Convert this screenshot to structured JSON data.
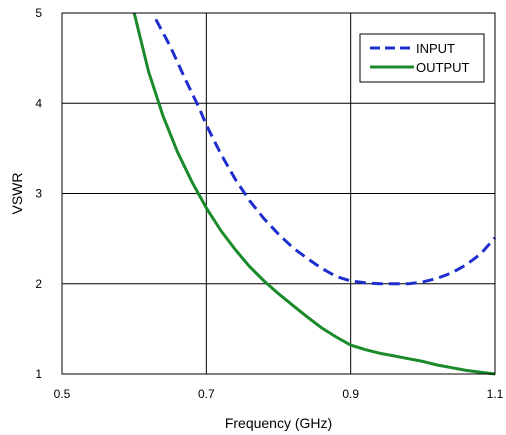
{
  "chart_data": {
    "type": "line",
    "xlabel": "Frequency (GHz)",
    "ylabel": "VSWR",
    "xlim": [
      0.5,
      1.1
    ],
    "ylim": [
      1,
      5
    ],
    "x_ticks": [
      "0.5",
      "0.7",
      "0.9",
      "1.1"
    ],
    "y_ticks": [
      "1",
      "2",
      "3",
      "4",
      "5"
    ],
    "grid": true,
    "legend_position": "top-right",
    "series": [
      {
        "name": "INPUT",
        "style": "dashed",
        "color": "#1f2fcf",
        "x": [
          0.63,
          0.65,
          0.67,
          0.69,
          0.7,
          0.72,
          0.74,
          0.76,
          0.78,
          0.8,
          0.82,
          0.84,
          0.86,
          0.88,
          0.9,
          0.92,
          0.94,
          0.96,
          0.98,
          1.0,
          1.02,
          1.04,
          1.06,
          1.08,
          1.1
        ],
        "y": [
          4.93,
          4.63,
          4.28,
          3.95,
          3.76,
          3.44,
          3.16,
          2.92,
          2.72,
          2.55,
          2.4,
          2.28,
          2.17,
          2.08,
          2.03,
          2.01,
          2.0,
          2.0,
          2.0,
          2.02,
          2.06,
          2.12,
          2.21,
          2.33,
          2.51
        ]
      },
      {
        "name": "OUTPUT",
        "style": "solid",
        "color": "#1a8a2a",
        "x": [
          0.6,
          0.62,
          0.64,
          0.66,
          0.68,
          0.7,
          0.72,
          0.74,
          0.76,
          0.78,
          0.8,
          0.82,
          0.84,
          0.86,
          0.88,
          0.9,
          0.92,
          0.94,
          0.96,
          0.98,
          1.0,
          1.02,
          1.04,
          1.06,
          1.08,
          1.1
        ],
        "y": [
          5.0,
          4.35,
          3.86,
          3.46,
          3.13,
          2.84,
          2.59,
          2.38,
          2.19,
          2.03,
          1.89,
          1.76,
          1.63,
          1.51,
          1.41,
          1.32,
          1.27,
          1.23,
          1.2,
          1.17,
          1.14,
          1.1,
          1.07,
          1.04,
          1.02,
          1.0
        ]
      }
    ]
  }
}
